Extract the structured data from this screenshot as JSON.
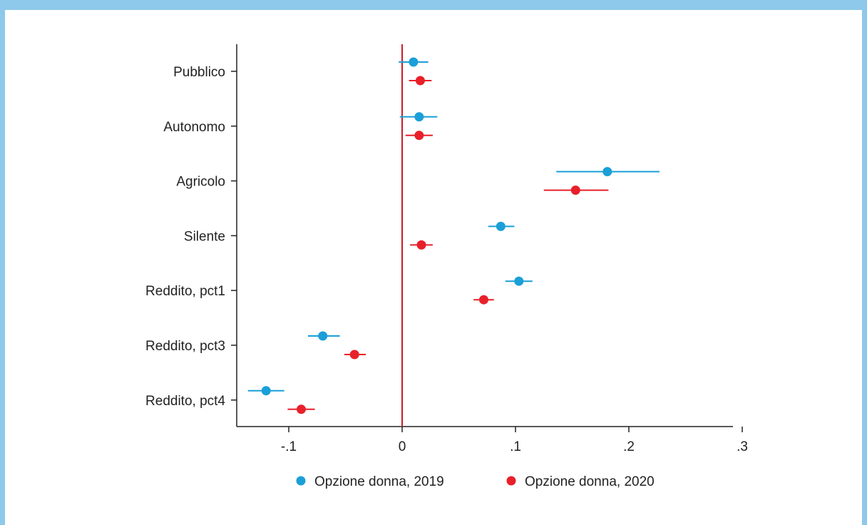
{
  "chart_data": {
    "type": "scatter",
    "subtype": "coefficient-plot-with-confidence-intervals",
    "categories": [
      "Pubblico",
      "Autonomo",
      "Agricolo",
      "Silente",
      "Reddito, pct1",
      "Reddito, pct3",
      "Reddito, pct4"
    ],
    "xlim": [
      -0.148,
      0.31
    ],
    "xticks": [
      -0.1,
      0,
      0.1,
      0.2,
      0.3
    ],
    "xtick_labels": [
      "-.1",
      "0",
      ".1",
      ".2",
      ".3"
    ],
    "reference_line_x": 0,
    "grid": false,
    "legend_position": "bottom",
    "series": [
      {
        "name": "Opzione donna, 2019",
        "color": "#1a9fd8",
        "values": [
          0.01,
          0.015,
          0.181,
          0.087,
          0.103,
          -0.07,
          -0.12
        ],
        "ci_low": [
          -0.003,
          -0.002,
          0.136,
          0.076,
          0.091,
          -0.083,
          -0.136
        ],
        "ci_high": [
          0.023,
          0.031,
          0.227,
          0.099,
          0.115,
          -0.055,
          -0.104
        ]
      },
      {
        "name": "Opzione donna, 2020",
        "color": "#e8202a",
        "values": [
          0.016,
          0.015,
          0.153,
          0.017,
          0.072,
          -0.042,
          -0.089
        ],
        "ci_low": [
          0.006,
          0.003,
          0.125,
          0.007,
          0.063,
          -0.051,
          -0.101
        ],
        "ci_high": [
          0.026,
          0.027,
          0.182,
          0.027,
          0.081,
          -0.032,
          -0.077
        ]
      }
    ],
    "title": "",
    "xlabel": "",
    "ylabel": ""
  }
}
